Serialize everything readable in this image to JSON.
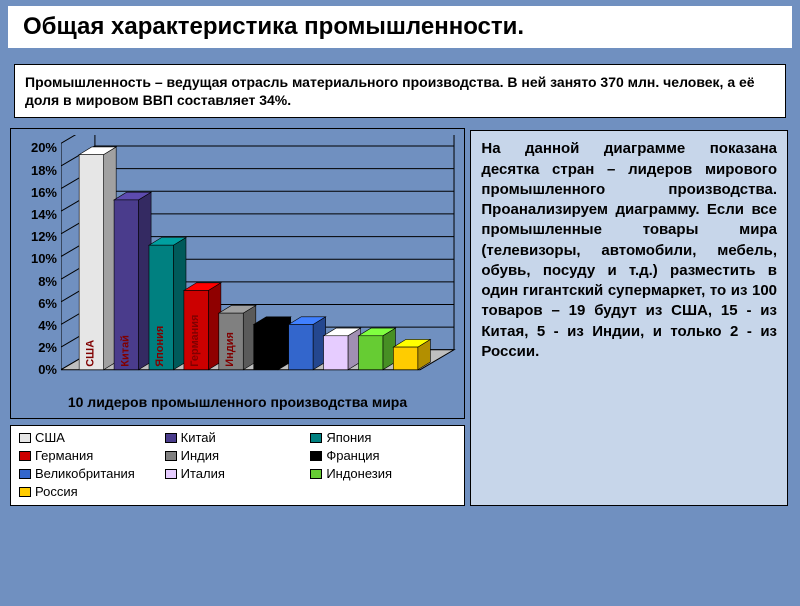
{
  "title": "Общая характеристика промышленности.",
  "intro": "Промышленность – ведущая отрасль материального производства. В ней занято 370 млн. человек, а её доля в мировом ВВП составляет 34%.",
  "description": "На данной диаграмме показана десятка стран – лидеров мирового промышленного производства. Проанализируем диаграмму. Если все промышленные товары мира (телевизоры, автомобили, мебель, обувь, посуду и т.д.) разместить в один гигантский супермаркет, то из 100 товаров – 19 будут из США, 15 - из Китая, 5 - из Индии, и только 2 - из России.",
  "chart": {
    "type": "bar3d",
    "title": "10 лидеров промышленного производства мира",
    "ylabel_suffix": "%",
    "ylim": [
      0,
      20
    ],
    "ytick_step": 2,
    "yticks": [
      "0%",
      "2%",
      "4%",
      "6%",
      "8%",
      "10%",
      "12%",
      "14%",
      "16%",
      "18%",
      "20%"
    ],
    "floor_color": "#bfbfbf",
    "grid_color": "#000000",
    "wall_color": "#7090c0",
    "series": [
      {
        "name": "США",
        "value": 19,
        "color": "#e6e6e6"
      },
      {
        "name": "Китай",
        "value": 15,
        "color": "#4a3c8c"
      },
      {
        "name": "Япония",
        "value": 11,
        "color": "#008080"
      },
      {
        "name": "Германия",
        "value": 7,
        "color": "#cc0000"
      },
      {
        "name": "Индия",
        "value": 5,
        "color": "#808080"
      },
      {
        "name": "Франция",
        "value": 4,
        "color": "#000000"
      },
      {
        "name": "Великобритания",
        "value": 4,
        "color": "#3366cc"
      },
      {
        "name": "Италия",
        "value": 3,
        "color": "#e6ccff"
      },
      {
        "name": "Индонезия",
        "value": 3,
        "color": "#66cc33"
      },
      {
        "name": "Россия",
        "value": 2,
        "color": "#ffcc00"
      }
    ],
    "bar_label_color": "#800000",
    "label_fontsize": 11,
    "tick_fontsize": 13
  },
  "colors": {
    "page_bg": "#7090c0",
    "desc_bg": "#c7d6ea"
  }
}
